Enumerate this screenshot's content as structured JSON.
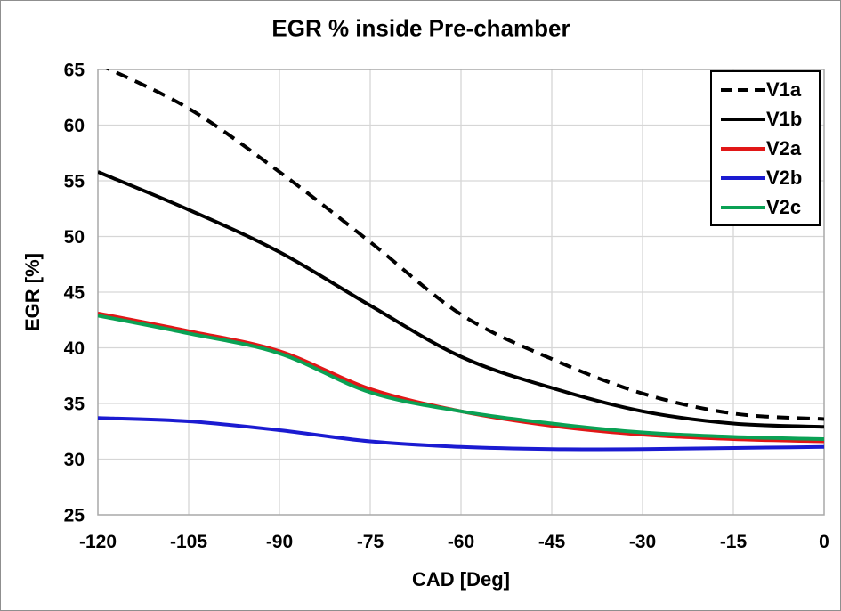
{
  "chart_data": {
    "type": "line",
    "title": "EGR % inside Pre-chamber",
    "xlabel": "CAD [Deg]",
    "ylabel": "EGR [%]",
    "xlim": [
      -120,
      0
    ],
    "ylim": [
      25,
      65
    ],
    "xticks": [
      -120,
      -105,
      -90,
      -75,
      -60,
      -45,
      -30,
      -15,
      0
    ],
    "yticks": [
      25,
      30,
      35,
      40,
      45,
      50,
      55,
      60,
      65
    ],
    "grid": true,
    "legend_position": "top-right",
    "x": [
      -120,
      -105,
      -90,
      -75,
      -60,
      -45,
      -30,
      -15,
      0
    ],
    "series": [
      {
        "name": "V1a",
        "color": "#000000",
        "dash": "dashed",
        "values": [
          65.5,
          61.5,
          55.8,
          49.5,
          43.0,
          39.0,
          35.9,
          34.1,
          33.6
        ]
      },
      {
        "name": "V1b",
        "color": "#000000",
        "dash": "solid",
        "values": [
          55.8,
          52.4,
          48.6,
          43.8,
          39.2,
          36.4,
          34.3,
          33.2,
          32.9
        ]
      },
      {
        "name": "V2a",
        "color": "#e11717",
        "dash": "solid",
        "values": [
          43.1,
          41.5,
          39.7,
          36.3,
          34.3,
          33.0,
          32.2,
          31.8,
          31.6
        ]
      },
      {
        "name": "V2b",
        "color": "#1b1bd1",
        "dash": "solid",
        "values": [
          33.7,
          33.4,
          32.6,
          31.6,
          31.1,
          30.9,
          30.9,
          31.0,
          31.1
        ]
      },
      {
        "name": "V2c",
        "color": "#0aa154",
        "dash": "solid",
        "values": [
          42.9,
          41.3,
          39.5,
          36.0,
          34.3,
          33.2,
          32.4,
          32.0,
          31.8
        ]
      }
    ],
    "style": {
      "grid_color": "#d6d6d6",
      "border_color": "#a9a9a9",
      "line_width": 4
    }
  }
}
